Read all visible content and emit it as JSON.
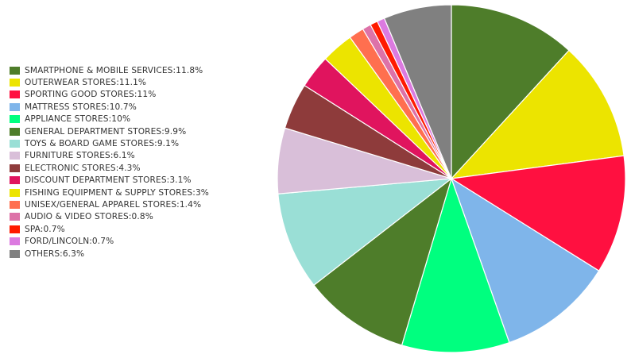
{
  "chart_data": {
    "type": "pie",
    "title": "",
    "legend_position": "left",
    "start_angle_deg": 0,
    "direction": "clockwise",
    "slices": [
      {
        "label": "SMARTPHONE & MOBILE SERVICES",
        "value": 11.8,
        "color": "#4e7d2a"
      },
      {
        "label": "OUTERWEAR STORES",
        "value": 11.1,
        "color": "#ece400"
      },
      {
        "label": "SPORTING GOOD STORES",
        "value": 11,
        "color": "#ff1040"
      },
      {
        "label": "MATTRESS STORES",
        "value": 10.7,
        "color": "#7fb5ea"
      },
      {
        "label": "APPLIANCE STORES",
        "value": 10,
        "color": "#00ff7f"
      },
      {
        "label": "GENERAL DEPARTMENT STORES",
        "value": 9.9,
        "color": "#4e7d2a"
      },
      {
        "label": "TOYS & BOARD GAME STORES",
        "value": 9.1,
        "color": "#9adfd6"
      },
      {
        "label": "FURNITURE STORES",
        "value": 6.1,
        "color": "#d9bfd9"
      },
      {
        "label": "ELECTRONIC STORES",
        "value": 4.3,
        "color": "#8e3b3b"
      },
      {
        "label": "DISCOUNT DEPARTMENT STORES",
        "value": 3.1,
        "color": "#e0145e"
      },
      {
        "label": "FISHING EQUIPMENT & SUPPLY STORES",
        "value": 3,
        "color": "#ece400"
      },
      {
        "label": "UNISEX/GENERAL APPAREL STORES",
        "value": 1.4,
        "color": "#ff6f4f"
      },
      {
        "label": "AUDIO & VIDEO STORES",
        "value": 0.8,
        "color": "#dd72a8"
      },
      {
        "label": "SPA",
        "value": 0.7,
        "color": "#ff1a00"
      },
      {
        "label": "FORD/LINCOLN",
        "value": 0.7,
        "color": "#dc7ae0"
      },
      {
        "label": "OTHERS",
        "value": 6.3,
        "color": "#808080"
      }
    ]
  }
}
